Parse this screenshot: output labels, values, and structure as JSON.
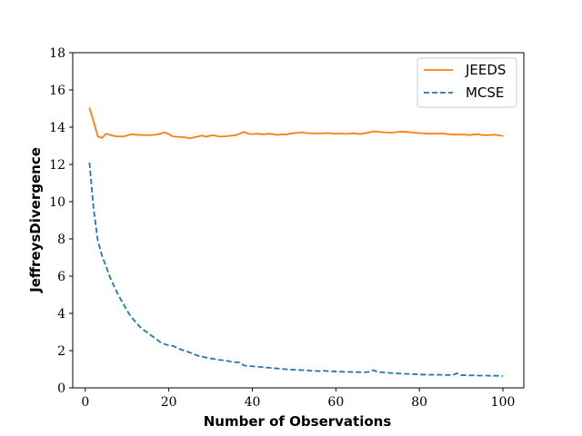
{
  "chart_data": {
    "type": "line",
    "xlabel": "Number of Observations",
    "ylabel": "JeffreysDivergence",
    "xlim": [
      -3,
      105
    ],
    "ylim": [
      0,
      18
    ],
    "xticks": [
      0,
      20,
      40,
      60,
      80,
      100
    ],
    "yticks": [
      0,
      2,
      4,
      6,
      8,
      10,
      12,
      14,
      16,
      18
    ],
    "grid": false,
    "legend_position": "top-right",
    "series": [
      {
        "name": "JEEDS",
        "color": "#ff7f0e",
        "style": "solid",
        "x": [
          1,
          2,
          3,
          4,
          5,
          6,
          7,
          8,
          9,
          10,
          11,
          12,
          13,
          14,
          15,
          16,
          17,
          18,
          19,
          20,
          21,
          22,
          23,
          24,
          25,
          26,
          27,
          28,
          29,
          30,
          31,
          32,
          33,
          34,
          35,
          36,
          37,
          38,
          39,
          40,
          41,
          42,
          43,
          44,
          45,
          46,
          47,
          48,
          49,
          50,
          51,
          52,
          53,
          54,
          55,
          56,
          57,
          58,
          59,
          60,
          61,
          62,
          63,
          64,
          65,
          66,
          67,
          68,
          69,
          70,
          71,
          72,
          73,
          74,
          75,
          76,
          77,
          78,
          79,
          80,
          81,
          82,
          83,
          84,
          85,
          86,
          87,
          88,
          89,
          90,
          91,
          92,
          93,
          94,
          95,
          96,
          97,
          98,
          99,
          100
        ],
        "values": [
          15.05,
          14.3,
          13.5,
          13.42,
          13.65,
          13.58,
          13.52,
          13.5,
          13.5,
          13.55,
          13.62,
          13.6,
          13.58,
          13.58,
          13.57,
          13.58,
          13.6,
          13.65,
          13.72,
          13.62,
          13.5,
          13.48,
          13.47,
          13.45,
          13.4,
          13.45,
          13.5,
          13.55,
          13.48,
          13.56,
          13.55,
          13.5,
          13.5,
          13.52,
          13.55,
          13.57,
          13.65,
          13.75,
          13.65,
          13.62,
          13.65,
          13.63,
          13.62,
          13.65,
          13.62,
          13.58,
          13.62,
          13.6,
          13.65,
          13.68,
          13.7,
          13.72,
          13.68,
          13.67,
          13.67,
          13.66,
          13.67,
          13.68,
          13.66,
          13.65,
          13.66,
          13.64,
          13.65,
          13.67,
          13.65,
          13.63,
          13.68,
          13.72,
          13.77,
          13.76,
          13.73,
          13.72,
          13.7,
          13.72,
          13.75,
          13.76,
          13.74,
          13.72,
          13.7,
          13.68,
          13.67,
          13.65,
          13.65,
          13.66,
          13.66,
          13.65,
          13.62,
          13.6,
          13.6,
          13.6,
          13.6,
          13.58,
          13.6,
          13.62,
          13.58,
          13.57,
          13.58,
          13.6,
          13.56,
          13.53
        ]
      },
      {
        "name": "MCSE",
        "color": "#1f77b4",
        "style": "dashed",
        "x": [
          1,
          2,
          3,
          4,
          5,
          6,
          7,
          8,
          9,
          10,
          11,
          12,
          13,
          14,
          15,
          16,
          17,
          18,
          19,
          20,
          21,
          22,
          23,
          24,
          25,
          26,
          27,
          28,
          29,
          30,
          31,
          32,
          33,
          34,
          35,
          36,
          37,
          38,
          39,
          40,
          41,
          42,
          43,
          44,
          45,
          46,
          47,
          48,
          49,
          50,
          51,
          52,
          53,
          54,
          55,
          56,
          57,
          58,
          59,
          60,
          61,
          62,
          63,
          64,
          65,
          66,
          67,
          68,
          69,
          70,
          71,
          72,
          73,
          74,
          75,
          76,
          77,
          78,
          79,
          80,
          81,
          82,
          83,
          84,
          85,
          86,
          87,
          88,
          89,
          90,
          91,
          92,
          93,
          94,
          95,
          96,
          97,
          98,
          99,
          100
        ],
        "values": [
          12.1,
          9.6,
          7.9,
          7.1,
          6.5,
          5.9,
          5.4,
          4.95,
          4.55,
          4.15,
          3.8,
          3.55,
          3.3,
          3.1,
          2.95,
          2.78,
          2.62,
          2.45,
          2.35,
          2.28,
          2.25,
          2.15,
          2.05,
          1.98,
          1.9,
          1.82,
          1.72,
          1.68,
          1.62,
          1.58,
          1.55,
          1.5,
          1.48,
          1.45,
          1.4,
          1.38,
          1.36,
          1.2,
          1.18,
          1.16,
          1.14,
          1.12,
          1.1,
          1.08,
          1.06,
          1.04,
          1.02,
          1.0,
          0.98,
          0.97,
          0.96,
          0.95,
          0.94,
          0.92,
          0.91,
          0.9,
          0.92,
          0.9,
          0.89,
          0.88,
          0.87,
          0.86,
          0.86,
          0.85,
          0.85,
          0.84,
          0.84,
          0.86,
          0.95,
          0.85,
          0.84,
          0.82,
          0.8,
          0.78,
          0.77,
          0.76,
          0.75,
          0.74,
          0.73,
          0.72,
          0.71,
          0.71,
          0.7,
          0.7,
          0.7,
          0.69,
          0.69,
          0.69,
          0.78,
          0.68,
          0.68,
          0.67,
          0.67,
          0.66,
          0.66,
          0.66,
          0.65,
          0.65,
          0.65,
          0.64
        ]
      }
    ]
  }
}
